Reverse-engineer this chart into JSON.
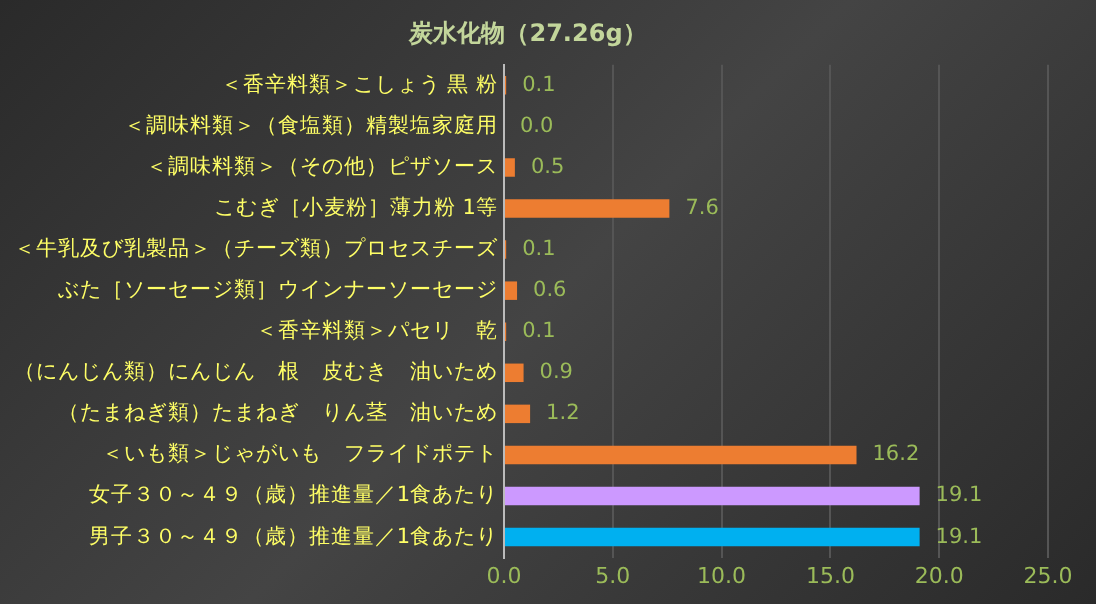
{
  "chart_data": {
    "type": "bar",
    "orientation": "horizontal",
    "title": "炭水化物（27.26g）",
    "categories": [
      "＜香辛料類＞こしょう 黒 粉",
      "＜調味料類＞（食塩類）精製塩家庭用",
      "＜調味料類＞（その他）ピザソース",
      "こむぎ［小麦粉］薄力粉 1等",
      "＜牛乳及び乳製品＞（チーズ類）プロセスチーズ",
      "ぶた［ソーセージ類］ウインナーソーセージ",
      "＜香辛料類＞パセリ　乾",
      "（にんじん類）にんじん　根　皮むき　油いため",
      "（たまねぎ類）たまねぎ　りん茎　油いため",
      "＜いも類＞じゃがいも　フライドポテト",
      "女子３０～４９（歳）推進量／1食あたり",
      "男子３０～４９（歳）推進量／1食あたり"
    ],
    "values": [
      0.1,
      0.0,
      0.5,
      7.6,
      0.1,
      0.6,
      0.1,
      0.9,
      1.2,
      16.2,
      19.1,
      19.1
    ],
    "value_labels": [
      "0.1",
      "0.0",
      "0.5",
      "7.6",
      "0.1",
      "0.6",
      "0.1",
      "0.9",
      "1.2",
      "16.2",
      "19.1",
      "19.1"
    ],
    "colors": [
      "#ed7d31",
      "#ed7d31",
      "#ed7d31",
      "#ed7d31",
      "#ed7d31",
      "#ed7d31",
      "#ed7d31",
      "#ed7d31",
      "#ed7d31",
      "#ed7d31",
      "#cc99ff",
      "#00b0f0"
    ],
    "xlim": [
      0,
      25
    ],
    "xticks": [
      {
        "value": 0,
        "label": "0.0"
      },
      {
        "value": 5,
        "label": "5.0"
      },
      {
        "value": 10,
        "label": "10.0"
      },
      {
        "value": 15,
        "label": "15.0"
      },
      {
        "value": 20,
        "label": "20.0"
      },
      {
        "value": 25,
        "label": "25.0"
      }
    ],
    "grid": "x",
    "legend": false
  }
}
